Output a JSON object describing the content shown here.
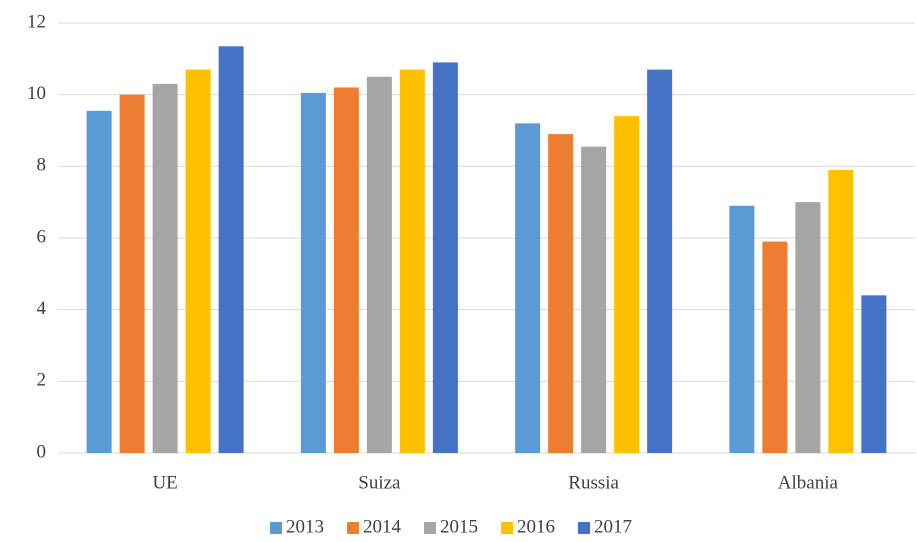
{
  "chart_data": {
    "type": "bar",
    "categories": [
      "UE",
      "Suiza",
      "Russia",
      "Albania"
    ],
    "series": [
      {
        "name": "2013",
        "color": "#5b9bd5",
        "values": [
          9.55,
          10.05,
          9.2,
          6.9
        ]
      },
      {
        "name": "2014",
        "color": "#ed7d31",
        "values": [
          10.0,
          10.2,
          8.9,
          5.9
        ]
      },
      {
        "name": "2015",
        "color": "#a5a5a5",
        "values": [
          10.3,
          10.5,
          8.55,
          7.0
        ]
      },
      {
        "name": "2016",
        "color": "#ffc000",
        "values": [
          10.7,
          10.7,
          9.4,
          7.9
        ]
      },
      {
        "name": "2017",
        "color": "#4472c4",
        "values": [
          11.35,
          10.9,
          10.7,
          4.4
        ]
      }
    ],
    "ylim": [
      0,
      12
    ],
    "yticks": [
      0,
      2,
      4,
      6,
      8,
      10,
      12
    ],
    "grid": true,
    "legend": "bottom"
  }
}
